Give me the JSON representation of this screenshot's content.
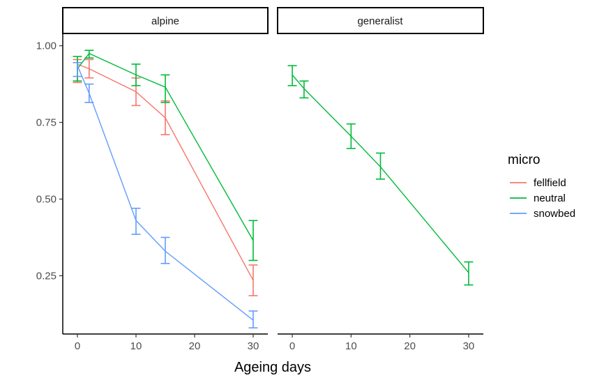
{
  "chart_data": {
    "type": "line",
    "xlabel": "Ageing days",
    "ylabel": "",
    "xlim": [
      -2.5,
      32.5
    ],
    "ylim": [
      0.06,
      1.04
    ],
    "x_ticks": [
      0,
      10,
      20,
      30
    ],
    "y_ticks": [
      0.25,
      0.5,
      0.75,
      1.0
    ],
    "y_tick_labels": [
      "0.25",
      "0.50",
      "0.75",
      "1.00"
    ],
    "grid": false,
    "legend": {
      "title": "micro",
      "position": "right",
      "entries": [
        {
          "name": "fellfield",
          "color": "#F8766D"
        },
        {
          "name": "neutral",
          "color": "#00BA38"
        },
        {
          "name": "snowbed",
          "color": "#619CFF"
        }
      ]
    },
    "panels": [
      {
        "label": "alpine",
        "series": [
          {
            "name": "fellfield",
            "color": "#F8766D",
            "x": [
              0,
              2,
              10,
              15,
              30
            ],
            "y": [
              0.94,
              0.925,
              0.85,
              0.765,
              0.235
            ],
            "lower": [
              0.88,
              0.895,
              0.805,
              0.71,
              0.185
            ],
            "upper": [
              0.955,
              0.955,
              0.895,
              0.82,
              0.285
            ]
          },
          {
            "name": "neutral",
            "color": "#00BA38",
            "x": [
              0,
              2,
              10,
              15,
              30
            ],
            "y": [
              0.925,
              0.975,
              0.905,
              0.865,
              0.365
            ],
            "lower": [
              0.885,
              0.96,
              0.87,
              0.815,
              0.3
            ],
            "upper": [
              0.965,
              0.985,
              0.94,
              0.905,
              0.43
            ]
          },
          {
            "name": "snowbed",
            "color": "#619CFF",
            "x": [
              0,
              2,
              10,
              15,
              30
            ],
            "y": [
              0.935,
              0.845,
              0.43,
              0.33,
              0.105
            ],
            "lower": [
              0.9,
              0.815,
              0.385,
              0.29,
              0.08
            ],
            "upper": [
              0.945,
              0.875,
              0.47,
              0.375,
              0.135
            ]
          }
        ]
      },
      {
        "label": "generalist",
        "series": [
          {
            "name": "neutral",
            "color": "#00BA38",
            "x": [
              0,
              2,
              10,
              15,
              30
            ],
            "y": [
              0.905,
              0.86,
              0.705,
              0.605,
              0.26
            ],
            "lower": [
              0.87,
              0.83,
              0.665,
              0.565,
              0.22
            ],
            "upper": [
              0.935,
              0.885,
              0.745,
              0.65,
              0.295
            ]
          }
        ]
      }
    ]
  }
}
